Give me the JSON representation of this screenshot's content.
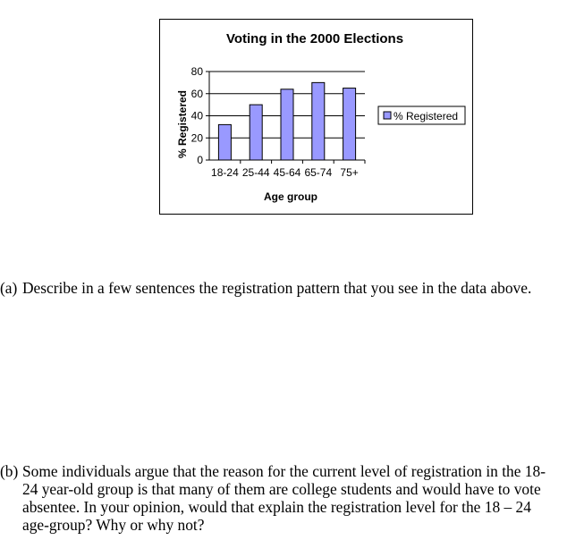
{
  "chart_data": {
    "type": "bar",
    "title": "Voting in the 2000 Elections",
    "xlabel": "Age group",
    "ylabel": "% Registered",
    "categories": [
      "18-24",
      "25-44",
      "45-64",
      "65-74",
      "75+"
    ],
    "series": [
      {
        "name": "% Registered",
        "values": [
          32,
          50,
          64,
          70,
          65
        ]
      }
    ],
    "ylim": [
      0,
      80
    ],
    "yticks": [
      0,
      20,
      40,
      60,
      80
    ],
    "grid": true,
    "legend": "right",
    "colors": {
      "bar_fill": "#9999FF",
      "bar_stroke": "#000000",
      "grid": "#000000"
    }
  },
  "questions": {
    "a": {
      "label": "(a)",
      "text": "Describe in a few sentences the registration pattern that you see in the data above."
    },
    "b": {
      "label": "(b)",
      "text": "Some individuals argue that the reason for the current level of registration in the 18-\n24 year-old group is that many of them are college students and would have to vote\nabsentee.  In your opinion, would that explain the registration level for the 18 – 24\nage-group?   Why or why not?"
    }
  }
}
